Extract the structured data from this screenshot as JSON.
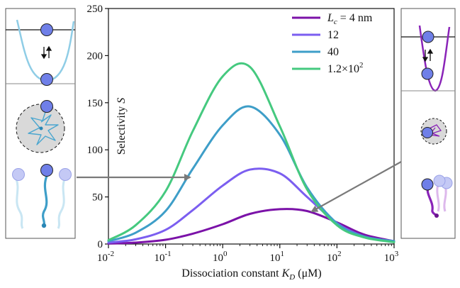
{
  "chart_data": {
    "type": "line",
    "xscale": "log",
    "xlim": [
      0.01,
      1000
    ],
    "ylim": [
      0,
      250
    ],
    "xlabel": "Dissociation constant",
    "xlabel_symbol": "K",
    "xlabel_subscript": "D",
    "xlabel_unit": "(μM)",
    "ylabel": "Selectivity",
    "ylabel_symbol": "S",
    "y_ticks": [
      0,
      50,
      100,
      150,
      200,
      250
    ],
    "x_ticks": [
      {
        "value": 0.01,
        "base": "10",
        "exp": "-2"
      },
      {
        "value": 0.1,
        "base": "10",
        "exp": "-1"
      },
      {
        "value": 1,
        "base": "10",
        "exp": "0"
      },
      {
        "value": 10,
        "base": "10",
        "exp": "1"
      },
      {
        "value": 100,
        "base": "10",
        "exp": "2"
      },
      {
        "value": 1000,
        "base": "10",
        "exp": "3"
      }
    ],
    "grid": false,
    "legend_position": "top-right",
    "legend_symbol": "L",
    "legend_subscript": "c",
    "series": [
      {
        "name": "4 nm",
        "legend_prefix": " = ",
        "color": "#7b12a8",
        "x": [
          0.01,
          0.03,
          0.1,
          0.3,
          1,
          3,
          10,
          30,
          100,
          300,
          1000
        ],
        "y": [
          0.5,
          1.5,
          4.5,
          11,
          21,
          32,
          37,
          35,
          23,
          10,
          3
        ]
      },
      {
        "name": "12",
        "legend_prefix": "",
        "color": "#7b5ef0",
        "x": [
          0.01,
          0.03,
          0.1,
          0.3,
          1,
          3,
          10,
          30,
          100,
          300,
          1000
        ],
        "y": [
          1.5,
          5,
          15,
          36,
          62,
          79,
          75,
          50,
          22,
          8,
          3
        ]
      },
      {
        "name": "40",
        "legend_prefix": "",
        "color": "#3e9ec8",
        "x": [
          0.01,
          0.03,
          0.1,
          0.3,
          1,
          3,
          10,
          30,
          100,
          300,
          1000
        ],
        "y": [
          3,
          12,
          35,
          80,
          126,
          146,
          116,
          60,
          22,
          8,
          3
        ]
      },
      {
        "name": "1.2×10",
        "legend_sup": "2",
        "legend_prefix": "",
        "color": "#45c97f",
        "x": [
          0.01,
          0.03,
          0.1,
          0.3,
          1,
          3,
          10,
          30,
          100,
          300,
          1000
        ],
        "y": [
          4,
          20,
          56,
          120,
          178,
          188,
          125,
          58,
          20,
          7,
          2
        ]
      }
    ]
  },
  "colors": {
    "left_schematic": "#5fb4d6",
    "right_schematic": "#8a24b8",
    "particle": "#6f7fe8",
    "arrow": "#7a7a7a"
  }
}
